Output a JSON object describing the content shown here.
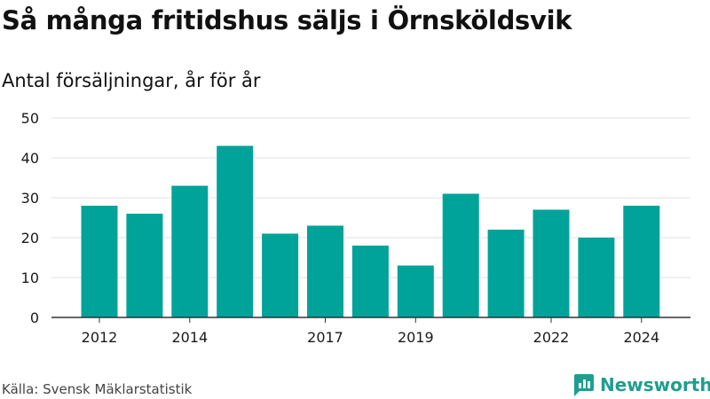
{
  "header": {
    "title": "Så många fritidshus säljs i Örnsköldsvik",
    "subtitle": "Antal försäljningar, år för år"
  },
  "footer": {
    "source": "Källa: Svensk Mäklarstatistik",
    "brand": "Newsworthy",
    "brand_icon": "newsworthy-logo-icon"
  },
  "colors": {
    "bar": "#00a39a",
    "grid": "#e2e2e2",
    "axis": "#333333",
    "brand": "#1f9e8f"
  },
  "chart_data": {
    "type": "bar",
    "categories": [
      "2012",
      "2013",
      "2014",
      "2015",
      "2016",
      "2017",
      "2018",
      "2019",
      "2020",
      "2021",
      "2022",
      "2023",
      "2024"
    ],
    "values": [
      28,
      26,
      33,
      43,
      21,
      23,
      18,
      13,
      31,
      22,
      27,
      20,
      28
    ],
    "x_tick_labels": [
      "2012",
      "2014",
      "2017",
      "2019",
      "2022",
      "2024"
    ],
    "y_ticks": [
      0,
      10,
      20,
      30,
      40,
      50
    ],
    "ylim": [
      0,
      50
    ],
    "grid": true,
    "legend": "none",
    "title": "Så många fritidshus säljs i Örnsköldsvik",
    "subtitle": "Antal försäljningar, år för år",
    "xlabel": "",
    "ylabel": ""
  }
}
